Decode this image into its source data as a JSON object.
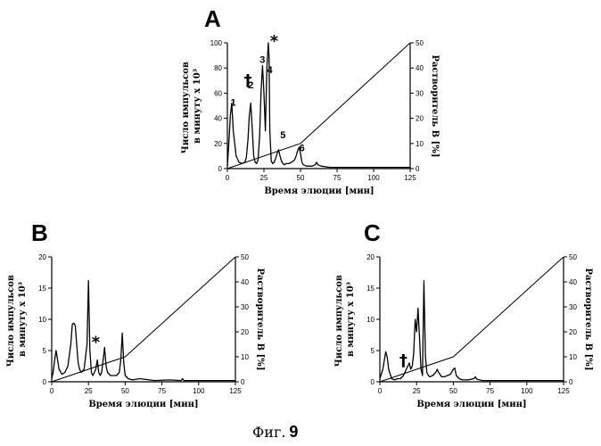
{
  "figure_caption": {
    "prefix": "Фиг.",
    "number": "9"
  },
  "chart_data": [
    {
      "panel": "A",
      "type": "line",
      "xlabel": "Время элюции [мин]",
      "ylabel": "Число импульсов в минуту x 10³",
      "ylabel2": "Растворитель B [%]",
      "xlim": [
        0,
        125
      ],
      "xticks": [
        0,
        25,
        50,
        75,
        100,
        125
      ],
      "ylim": [
        0,
        100
      ],
      "yticks": [
        0,
        20,
        40,
        60,
        80,
        100
      ],
      "y2lim": [
        0,
        50
      ],
      "y2ticks": [
        0,
        10,
        20,
        30,
        40,
        50
      ],
      "series": [
        {
          "x": [
            0,
            1,
            2,
            3,
            4,
            6,
            8,
            10,
            12,
            13,
            14,
            15,
            16,
            17,
            18,
            19,
            20,
            21,
            22,
            23,
            24,
            25,
            26,
            27,
            28,
            28.5,
            29,
            30,
            31,
            32,
            33,
            34,
            35,
            36,
            37,
            38,
            39,
            40,
            42,
            44,
            46,
            47,
            48,
            49,
            50,
            51,
            52,
            54,
            56,
            58,
            60,
            61,
            62,
            64,
            70,
            80,
            90,
            100,
            110,
            120,
            125
          ],
          "y": [
            2,
            20,
            42,
            52,
            30,
            10,
            5,
            4,
            5,
            9,
            22,
            42,
            52,
            32,
            10,
            5,
            4,
            7,
            25,
            60,
            82,
            60,
            30,
            80,
            102,
            90,
            30,
            6,
            4,
            5,
            8,
            12,
            15,
            10,
            6,
            4,
            3,
            4,
            4,
            5,
            7,
            10,
            14,
            17,
            12,
            5,
            3,
            2,
            2,
            2,
            3,
            5,
            3,
            2,
            1,
            1,
            1,
            1,
            1,
            1,
            1
          ]
        },
        {
          "x": [
            0,
            50,
            125
          ],
          "y2": [
            0,
            10,
            50
          ]
        }
      ],
      "peak_labels": [
        {
          "text": "1",
          "x": 4,
          "y": 50
        },
        {
          "text": "2",
          "x": 16,
          "y": 64
        },
        {
          "text": "3",
          "x": 24,
          "y": 84
        },
        {
          "text": "4",
          "x": 29,
          "y": 76
        },
        {
          "text": "5",
          "x": 38,
          "y": 24
        },
        {
          "text": "6",
          "x": 51,
          "y": 14
        }
      ],
      "symbols": [
        {
          "text": "†",
          "x": 14,
          "y": 66
        },
        {
          "text": "*",
          "x": 32,
          "y": 97
        }
      ]
    },
    {
      "panel": "B",
      "type": "line",
      "xlabel": "Время элюции [мин]",
      "ylabel": "Число импульсов в минуту x 10³",
      "ylabel2": "Растворитель B [%]",
      "xlim": [
        0,
        125
      ],
      "xticks": [
        0,
        25,
        50,
        75,
        100,
        125
      ],
      "ylim": [
        0,
        20
      ],
      "yticks": [
        0,
        5,
        10,
        15,
        20
      ],
      "y2lim": [
        0,
        50
      ],
      "y2ticks": [
        0,
        10,
        20,
        30,
        40,
        50
      ],
      "series": [
        {
          "x": [
            0,
            1,
            2,
            3,
            4,
            5,
            7,
            9,
            11,
            13,
            14,
            15,
            16,
            17,
            18,
            19,
            20,
            22,
            24,
            25,
            26,
            27,
            28,
            29,
            30,
            31,
            32,
            33,
            34,
            35,
            36,
            37,
            38,
            40,
            42,
            44,
            46,
            47,
            48,
            49,
            50,
            52,
            55,
            60,
            70,
            80,
            88,
            89,
            90,
            100,
            110,
            120,
            125
          ],
          "y": [
            0.5,
            1.5,
            3.5,
            5,
            3.5,
            2,
            1.2,
            1.5,
            2.5,
            6,
            9.2,
            9.4,
            9,
            6,
            3,
            2,
            1.5,
            2,
            6,
            16.2,
            5,
            1.5,
            1,
            1.5,
            2,
            3.5,
            1.5,
            1,
            1.5,
            3.5,
            5.5,
            2.5,
            1.5,
            1,
            1,
            1,
            1.5,
            3.5,
            7.8,
            3,
            1,
            0.5,
            0.3,
            0.5,
            0.2,
            0.3,
            0.2,
            0.5,
            0.2,
            0.2,
            0.2,
            0.2,
            0.2
          ]
        },
        {
          "x": [
            0,
            50,
            125
          ],
          "y2": [
            0,
            10,
            50
          ]
        }
      ],
      "peak_labels": [],
      "symbols": [
        {
          "text": "*",
          "x": 30,
          "y": 5.5
        }
      ]
    },
    {
      "panel": "C",
      "type": "line",
      "xlabel": "Время элюции [мин]",
      "ylabel": "Число импульсов в минуту x 10³",
      "ylabel2": "Растворитель B [%]",
      "xlim": [
        0,
        125
      ],
      "xticks": [
        0,
        25,
        50,
        75,
        100,
        125
      ],
      "ylim": [
        0,
        20
      ],
      "yticks": [
        0,
        5,
        10,
        15,
        20
      ],
      "y2lim": [
        0,
        50
      ],
      "y2ticks": [
        0,
        10,
        20,
        30,
        40,
        50
      ],
      "series": [
        {
          "x": [
            0,
            2,
            4,
            5,
            6,
            8,
            10,
            12,
            14,
            16,
            18,
            20,
            21,
            22,
            23,
            24,
            25,
            26,
            27,
            28,
            29,
            30,
            31,
            32,
            33,
            34,
            36,
            38,
            39,
            40,
            42,
            44,
            46,
            48,
            50,
            51,
            52,
            54,
            56,
            60,
            64,
            65,
            66,
            70,
            80,
            90,
            100,
            110,
            120,
            125
          ],
          "y": [
            0.5,
            2,
            4.8,
            4,
            2,
            0.5,
            0.3,
            0.5,
            0.5,
            1,
            2,
            3,
            2,
            2.5,
            4.5,
            10,
            8,
            11.8,
            7,
            2,
            1,
            16.2,
            4,
            1.5,
            1,
            0.8,
            1,
            1.5,
            2,
            1.5,
            0.8,
            0.8,
            1,
            1.2,
            2,
            2.2,
            1,
            0.5,
            0.3,
            0.3,
            0.5,
            0.8,
            0.4,
            0.2,
            0.2,
            0.2,
            0.2,
            0.2,
            0.2,
            0.2
          ]
        },
        {
          "x": [
            0,
            50,
            125
          ],
          "y2": [
            0,
            10,
            50
          ]
        }
      ],
      "peak_labels": [],
      "symbols": [
        {
          "text": "†",
          "x": 16,
          "y": 2.6
        }
      ]
    }
  ]
}
